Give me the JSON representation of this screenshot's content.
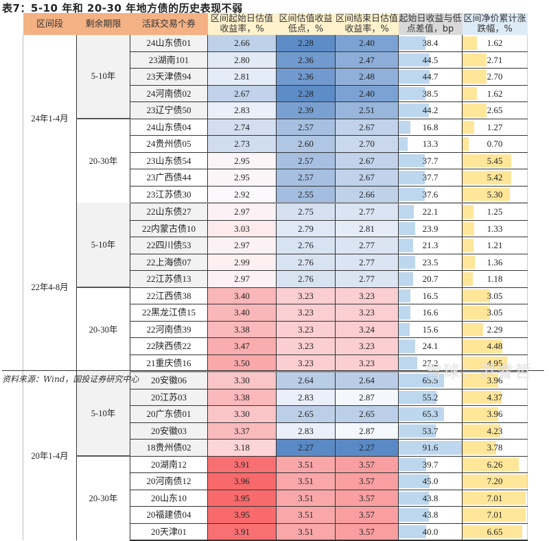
{
  "title": "表7：5-10 年和 20-30 年地方债的历史表现不弱",
  "headers": {
    "period": "区间段",
    "term": "剩余期限",
    "bond": "活跃交易个券",
    "start_yield": "区间起始日估值收益率，%",
    "low_yield": "区间估值收益低点，%",
    "end_yield": "区间结束日估值收益率，%",
    "spread_bp": "起始日收益与低点差值，bp",
    "price_change": "区间净价累计涨跌幅，%"
  },
  "header_colors": {
    "orange": "#f4b183",
    "cream": "#fff2cc",
    "gray": "#d9d9d9",
    "blue": "#ddebf7"
  },
  "groups": [
    {
      "period": "24年1-4月",
      "terms": [
        {
          "term": "5-10年",
          "rows": [
            {
              "bond": "24山东债01",
              "start": "2.66",
              "low": "2.28",
              "end": "2.40",
              "bp": "38.4",
              "px": "1.62"
            },
            {
              "bond": "23湖南101",
              "start": "2.80",
              "low": "2.36",
              "end": "2.47",
              "bp": "44.5",
              "px": "2.71"
            },
            {
              "bond": "23天津债94",
              "start": "2.81",
              "low": "2.36",
              "end": "2.48",
              "bp": "44.7",
              "px": "2.70"
            },
            {
              "bond": "24河南债02",
              "start": "2.67",
              "low": "2.28",
              "end": "2.40",
              "bp": "38.5",
              "px": "1.62"
            },
            {
              "bond": "23辽宁债50",
              "start": "2.83",
              "low": "2.39",
              "end": "2.51",
              "bp": "44.2",
              "px": "2.65"
            }
          ]
        },
        {
          "term": "20-30年",
          "rows": [
            {
              "bond": "24山东债04",
              "start": "2.74",
              "low": "2.57",
              "end": "2.67",
              "bp": "16.8",
              "px": "1.27"
            },
            {
              "bond": "24贵州债05",
              "start": "2.73",
              "low": "2.60",
              "end": "2.70",
              "bp": "13.3",
              "px": "0.70"
            },
            {
              "bond": "23山东债54",
              "start": "2.95",
              "low": "2.57",
              "end": "2.67",
              "bp": "37.7",
              "px": "5.45"
            },
            {
              "bond": "23广西债44",
              "start": "2.95",
              "low": "2.57",
              "end": "2.67",
              "bp": "37.7",
              "px": "5.42"
            },
            {
              "bond": "23江苏债30",
              "start": "2.92",
              "low": "2.55",
              "end": "2.66",
              "bp": "37.6",
              "px": "5.30"
            }
          ]
        }
      ]
    },
    {
      "period": "22年4-8月",
      "terms": [
        {
          "term": "5-10年",
          "rows": [
            {
              "bond": "22山东债27",
              "start": "2.97",
              "low": "2.75",
              "end": "2.77",
              "bp": "22.1",
              "px": "1.25"
            },
            {
              "bond": "22内蒙古债10",
              "start": "3.03",
              "low": "2.79",
              "end": "2.81",
              "bp": "23.9",
              "px": "1.33"
            },
            {
              "bond": "22四川债53",
              "start": "2.97",
              "low": "2.76",
              "end": "2.77",
              "bp": "21.3",
              "px": "1.21"
            },
            {
              "bond": "22上海债07",
              "start": "2.99",
              "low": "2.76",
              "end": "2.77",
              "bp": "23.5",
              "px": "1.36"
            },
            {
              "bond": "22江苏债13",
              "start": "2.97",
              "low": "2.76",
              "end": "2.77",
              "bp": "20.7",
              "px": "1.18"
            }
          ]
        },
        {
          "term": "20-30年",
          "rows": [
            {
              "bond": "22江西债38",
              "start": "3.40",
              "low": "3.23",
              "end": "3.23",
              "bp": "16.5",
              "px": "3.05"
            },
            {
              "bond": "22黑龙江债15",
              "start": "3.40",
              "low": "3.23",
              "end": "3.23",
              "bp": "16.6",
              "px": "3.05"
            },
            {
              "bond": "22河南债39",
              "start": "3.38",
              "low": "3.23",
              "end": "3.24",
              "bp": "15.6",
              "px": "2.29"
            },
            {
              "bond": "22陕西债22",
              "start": "3.47",
              "low": "3.23",
              "end": "3.23",
              "bp": "24.1",
              "px": "4.48"
            },
            {
              "bond": "21重庆债16",
              "start": "3.50",
              "low": "3.23",
              "end": "3.23",
              "bp": "27.2",
              "px": "4.95"
            }
          ]
        }
      ]
    },
    {
      "period": "20年1-4月",
      "terms": [
        {
          "term": "5-10年",
          "rows": [
            {
              "bond": "20安徽06",
              "start": "3.30",
              "low": "2.64",
              "end": "2.64",
              "bp": "65.5",
              "px": "3.96"
            },
            {
              "bond": "20江苏03",
              "start": "3.38",
              "low": "2.83",
              "end": "2.87",
              "bp": "55.2",
              "px": "4.37"
            },
            {
              "bond": "20广东债01",
              "start": "3.30",
              "low": "2.65",
              "end": "2.65",
              "bp": "65.3",
              "px": "3.96"
            },
            {
              "bond": "20安徽03",
              "start": "3.37",
              "low": "2.83",
              "end": "2.87",
              "bp": "53.7",
              "px": "4.23"
            },
            {
              "bond": "18贵州债02",
              "start": "3.18",
              "low": "2.27",
              "end": "2.27",
              "bp": "91.6",
              "px": "3.78"
            }
          ]
        },
        {
          "term": "20-30年",
          "rows": [
            {
              "bond": "20湖南12",
              "start": "3.91",
              "low": "3.51",
              "end": "3.57",
              "bp": "39.7",
              "px": "6.26"
            },
            {
              "bond": "20河南债12",
              "start": "3.96",
              "low": "3.51",
              "end": "3.57",
              "bp": "45.0",
              "px": "7.20"
            },
            {
              "bond": "20山东10",
              "start": "3.95",
              "low": "3.51",
              "end": "3.57",
              "bp": "43.8",
              "px": "7.01"
            },
            {
              "bond": "20福建债04",
              "start": "3.95",
              "low": "3.51",
              "end": "3.57",
              "bp": "43.8",
              "px": "7.01"
            },
            {
              "bond": "20天津01",
              "start": "3.91",
              "low": "3.51",
              "end": "3.57",
              "bp": "40.0",
              "px": "6.65"
            }
          ]
        }
      ]
    }
  ],
  "source": "资料来源：Wind，国投证券研究中心",
  "watermark": "雪球：尹睿哲"
}
